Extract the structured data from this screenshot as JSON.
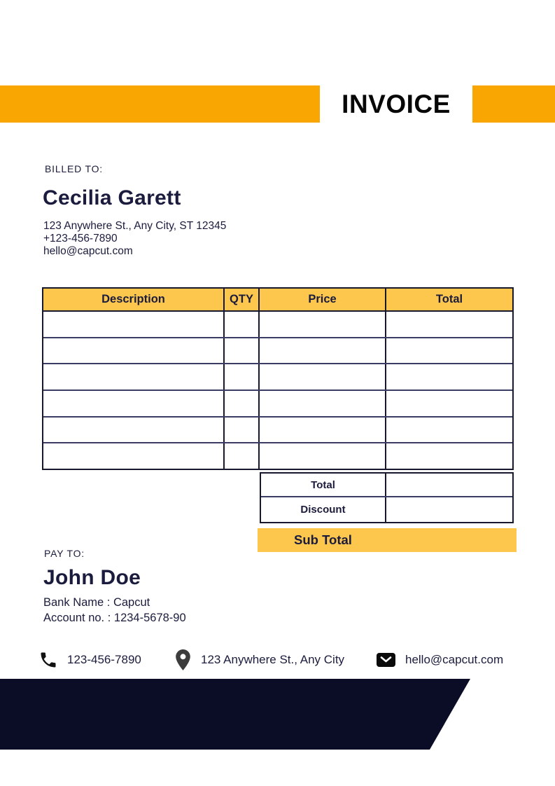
{
  "colors": {
    "orange": "#F9A602",
    "yellow": "#FDC64C",
    "navy_text": "#1b1c3d",
    "line_dark": "#17182e",
    "line_navy": "#3b3c63",
    "footer_navy": "#0b0d27",
    "icon_black": "#111111",
    "pin_gray": "#3d3d3d"
  },
  "header": {
    "title": "INVOICE"
  },
  "billed_to": {
    "label": "BILLED TO:",
    "name": "Cecilia Garett",
    "address": "123 Anywhere St., Any City, ST 12345",
    "phone": "+123-456-7890",
    "email": "hello@capcut.com"
  },
  "table": {
    "columns": [
      "Description",
      "QTY",
      "Price",
      "Total"
    ],
    "empty_rows": 6,
    "summary": {
      "total_label": "Total",
      "discount_label": "Discount",
      "subtotal_label": "Sub Total"
    }
  },
  "pay_to": {
    "label": "PAY TO:",
    "name": "John Doe",
    "bank_name": "Bank Name : Capcut",
    "account_no": "Account no. : 1234-5678-90"
  },
  "contact_bar": {
    "phone": "123-456-7890",
    "address": "123 Anywhere St., Any City",
    "email": "hello@capcut.com",
    "icons": [
      "phone-icon",
      "location-pin-icon",
      "envelope-icon"
    ]
  }
}
